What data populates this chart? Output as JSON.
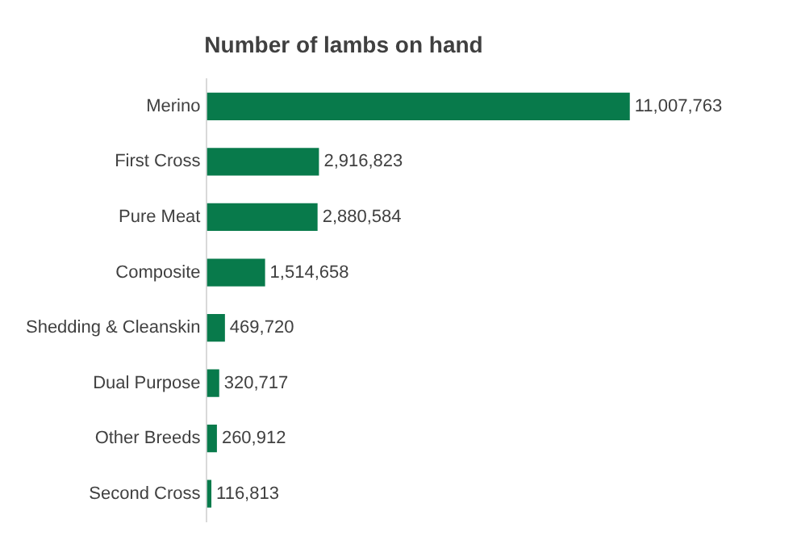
{
  "chart_data": {
    "type": "bar",
    "orientation": "horizontal",
    "title": "Number of lambs on hand",
    "categories": [
      "Merino",
      "First Cross",
      "Pure Meat",
      "Composite",
      "Shedding & Cleanskin",
      "Dual Purpose",
      "Other Breeds",
      "Second Cross"
    ],
    "values": [
      11007763,
      2916823,
      2880584,
      1514658,
      469720,
      320717,
      260912,
      116813
    ],
    "value_labels": [
      "11,007,763",
      "2,916,823",
      "2,880,584",
      "1,514,658",
      "469,720",
      "320,717",
      "260,912",
      "116,813"
    ],
    "color": "#087a4b",
    "grid": false,
    "legend": false,
    "tick_labels": "y"
  }
}
